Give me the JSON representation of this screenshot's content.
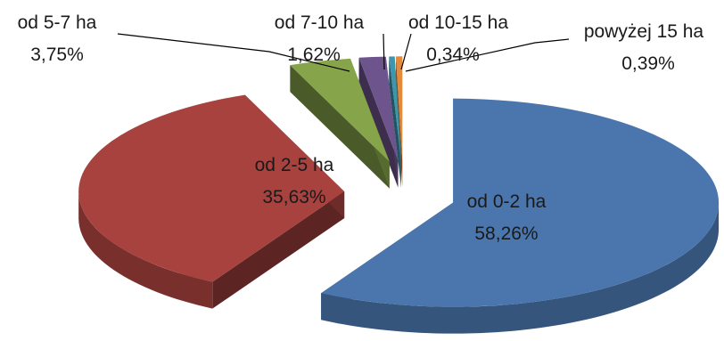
{
  "chart_data": {
    "type": "pie",
    "style": "3d-exploded",
    "categories": [
      "od 0-2 ha",
      "od 2-5 ha",
      "od 5-7 ha",
      "od 7-10 ha",
      "od 10-15 ha",
      "powyżej 15 ha"
    ],
    "values": [
      58.26,
      35.63,
      3.75,
      1.62,
      0.34,
      0.39
    ],
    "value_labels": [
      "58,26%",
      "35,63%",
      "3,75%",
      "1,62%",
      "0,34%",
      "0,39%"
    ],
    "colors": [
      "#4a76ad",
      "#a8423f",
      "#86a44a",
      "#6e548d",
      "#3d96ae",
      "#e48b3a"
    ],
    "legend": "none"
  }
}
